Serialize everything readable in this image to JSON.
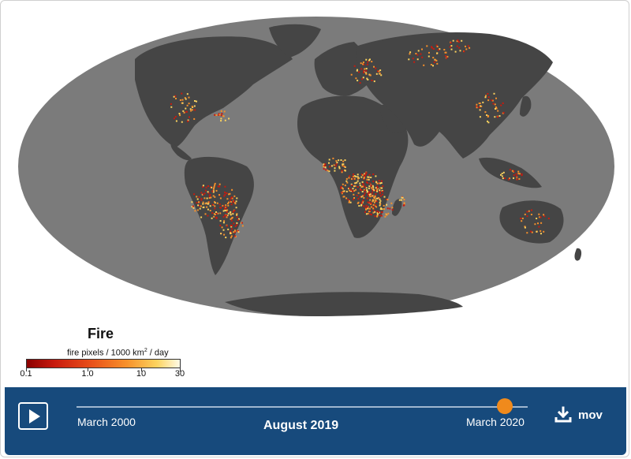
{
  "legend": {
    "title": "Fire",
    "units_prefix": "fire pixels / 1000 km",
    "units_power": "2",
    "units_suffix": " / day",
    "ticks": [
      "0.1",
      "1.0",
      "10",
      "30"
    ],
    "colors": [
      "#8b0000",
      "#c81a0e",
      "#e8501a",
      "#f7902a",
      "#fcd35f",
      "#fffbe6"
    ]
  },
  "timeline": {
    "start_label": "March 2000",
    "end_label": "March 2020",
    "current_label": "August 2019",
    "position_fraction": 0.95
  },
  "download": {
    "label": "mov",
    "icon": "download-icon"
  },
  "play": {
    "icon": "play-icon"
  },
  "map": {
    "projection": "Mollweide",
    "ocean_color": "#7b7b7b",
    "land_color": "#454545",
    "fire_colors": [
      "#c81a0e",
      "#f7902a",
      "#fcd35f"
    ]
  }
}
